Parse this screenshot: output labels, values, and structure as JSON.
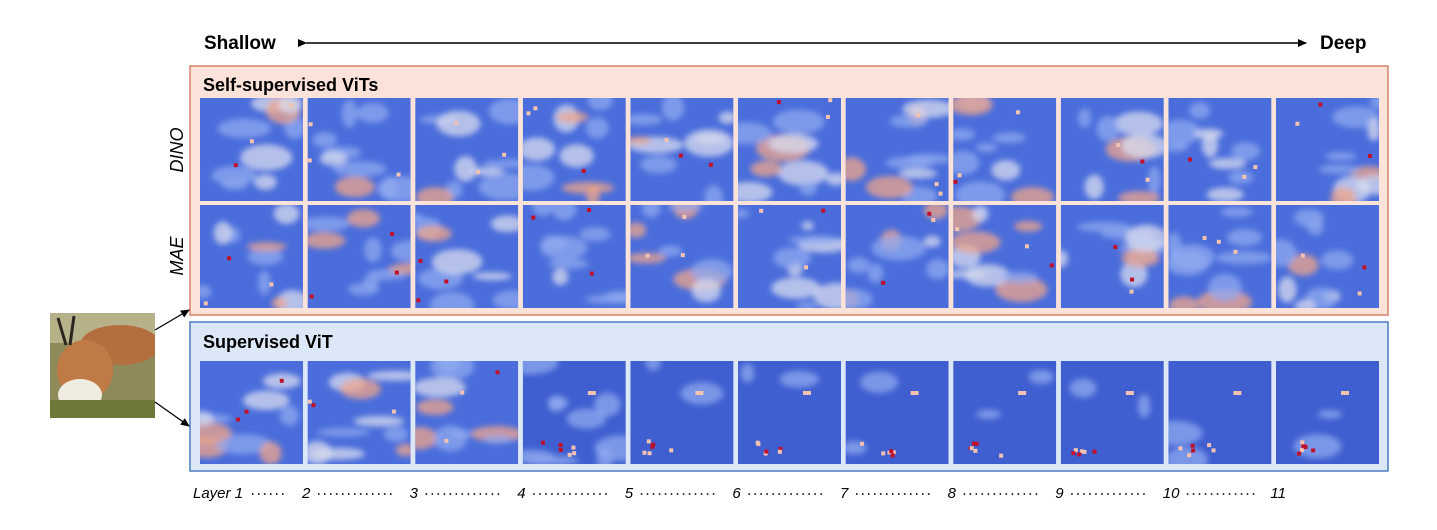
{
  "header": {
    "left": "Shallow",
    "right": "Deep"
  },
  "panels": [
    {
      "title": "Self-supervised ViTs",
      "rows": [
        "DINO",
        "MAE"
      ]
    },
    {
      "title": "Supervised ViT"
    }
  ],
  "layers": [
    "Layer 1",
    "2",
    "3",
    "4",
    "5",
    "6",
    "7",
    "8",
    "9",
    "10",
    "11"
  ]
}
